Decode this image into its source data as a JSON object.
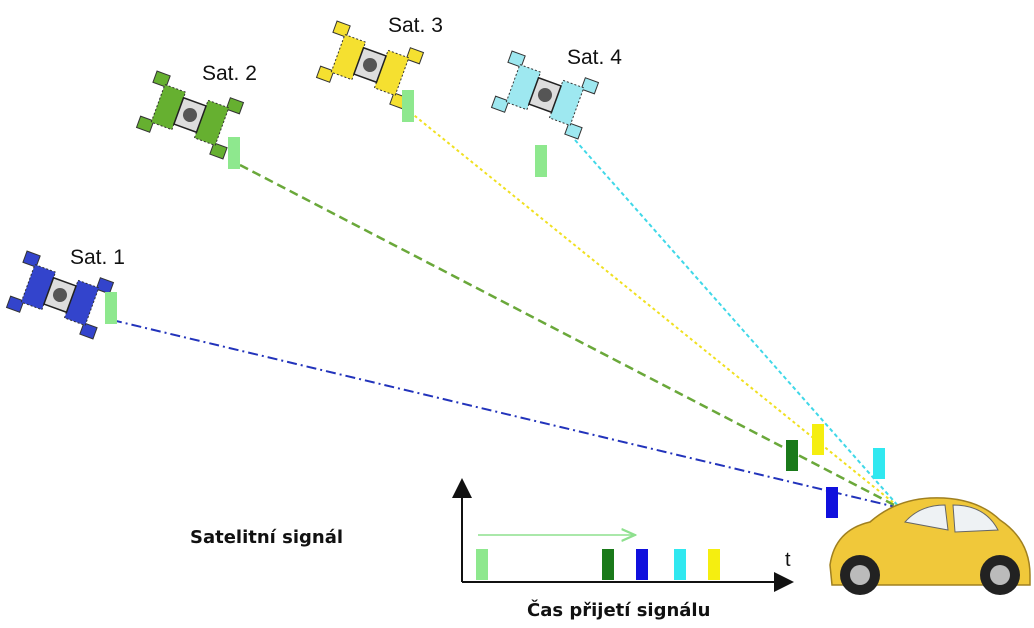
{
  "satellites": [
    {
      "label": "Sat. 1"
    },
    {
      "label": "Sat. 2"
    },
    {
      "label": "Sat. 3"
    },
    {
      "label": "Sat. 4"
    }
  ],
  "signal_label": "Satelitní signál",
  "axis_label": "t",
  "time_label": "Čas přijetí signálu"
}
